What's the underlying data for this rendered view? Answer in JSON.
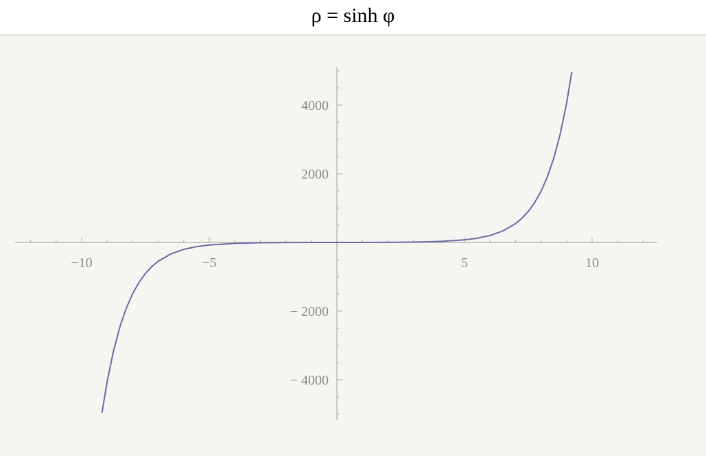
{
  "title": "ρ = sinh φ",
  "colors": {
    "curve": "#6a6aa8",
    "axis": "#a9b0a4",
    "tick_text": "#8a8a8a",
    "paper": "#f6f5f1"
  },
  "chart_data": {
    "type": "line",
    "title": "ρ = sinh φ",
    "xlabel": "",
    "ylabel": "",
    "function": "sinh",
    "xlim": [
      -12,
      12
    ],
    "ylim": [
      -5000,
      5000
    ],
    "x_ticks": [
      -10,
      -5,
      5,
      10
    ],
    "x_tick_labels": [
      "−10",
      "−5",
      "5",
      "10"
    ],
    "y_ticks": [
      4000,
      2000,
      -2000,
      -4000
    ],
    "y_tick_labels": [
      "4000",
      "2000",
      "− 2000",
      "− 4000"
    ],
    "grid": false,
    "series": [
      {
        "x": [
          -9.2,
          -9.0,
          -8.75,
          -8.5,
          -8.25,
          -8.0,
          -7.75,
          -7.5,
          -7.25,
          -7.0,
          -6.5,
          -6.0,
          -5.5,
          -5.0,
          -4.0,
          -3.0,
          -2.0,
          -1.0,
          0.0,
          1.0,
          2.0,
          3.0,
          4.0,
          5.0,
          5.5,
          6.0,
          6.5,
          7.0,
          7.25,
          7.5,
          7.75,
          8.0,
          8.25,
          8.5,
          8.75,
          9.0,
          9.2
        ],
        "y": [
          -4948,
          -4051,
          -3155,
          -2457,
          -1914,
          -1490,
          -1161,
          -904,
          -704,
          -548,
          -333,
          -202,
          -122,
          -74,
          -27,
          -10,
          -3.6,
          -1.2,
          0,
          1.2,
          3.6,
          10,
          27,
          74,
          122,
          202,
          333,
          548,
          704,
          904,
          1161,
          1490,
          1914,
          2457,
          3155,
          4051,
          4948
        ]
      }
    ]
  }
}
